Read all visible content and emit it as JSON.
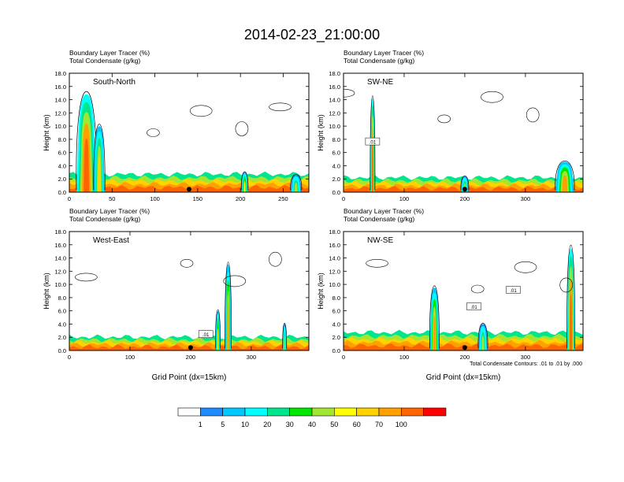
{
  "figure": {
    "title": "2014-02-23_21:00:00",
    "footer_note": "Total Condensate Contours: .01 to .01 by .000"
  },
  "colorbar": {
    "tick_labels": [
      "1",
      "5",
      "10",
      "20",
      "30",
      "40",
      "50",
      "60",
      "70",
      "100"
    ],
    "colors": [
      "#ffffff",
      "#1e8cff",
      "#00c8ff",
      "#00ffff",
      "#00e68c",
      "#00e600",
      "#a0e632",
      "#ffff00",
      "#ffd200",
      "#ffa000",
      "#ff6400",
      "#ff0000"
    ]
  },
  "chart_data": [
    {
      "type": "contour",
      "panel_label": "South-North",
      "subtitle_1": "Boundary Layer Tracer   (%)",
      "subtitle_2": "Total Condensate   (g/kg)",
      "ylabel": "Height (km)",
      "xlabel": "",
      "xlim": [
        0,
        280
      ],
      "x_ticks": [
        0,
        50,
        100,
        150,
        200,
        250
      ],
      "ylim": [
        0,
        18
      ],
      "y_ticks": [
        "0.0",
        "2.0",
        "4.0",
        "6.0",
        "8.0",
        "10.0",
        "12.0",
        "14.0",
        "16.0",
        "18.0"
      ],
      "contour_labels": [],
      "marker_x": 140,
      "plumes": [
        {
          "x": 20,
          "top": 14.8,
          "width": 18,
          "peak": 100
        },
        {
          "x": 35,
          "top": 10.0,
          "width": 10,
          "peak": 60
        },
        {
          "x": 205,
          "top": 3.0,
          "width": 6,
          "peak": 50
        },
        {
          "x": 265,
          "top": 2.6,
          "width": 10,
          "peak": 40
        }
      ],
      "bl_top_km": 1.6
    },
    {
      "type": "contour",
      "panel_label": "SW-NE",
      "subtitle_1": "Boundary Layer Tracer   (%)",
      "subtitle_2": "Total Condensate   (g/kg)",
      "ylabel": "Height (km)",
      "xlabel": "",
      "xlim": [
        0,
        395
      ],
      "x_ticks": [
        0,
        100,
        200,
        300
      ],
      "ylim": [
        0,
        18
      ],
      "y_ticks": [
        "0.0",
        "2.0",
        "4.0",
        "6.0",
        "8.0",
        "10.0",
        "12.0",
        "14.0",
        "16.0",
        "18.0"
      ],
      "contour_labels": [
        ".01"
      ],
      "marker_x": 200,
      "plumes": [
        {
          "x": 48,
          "top": 14.2,
          "width": 6,
          "peak": 100
        },
        {
          "x": 200,
          "top": 2.4,
          "width": 10,
          "peak": 40
        },
        {
          "x": 365,
          "top": 4.6,
          "width": 24,
          "peak": 70
        }
      ],
      "bl_top_km": 1.3
    },
    {
      "type": "contour",
      "panel_label": "West-East",
      "subtitle_1": "Boundary Layer Tracer   (%)",
      "subtitle_2": "Total Condensate   (g/kg)",
      "ylabel": "Height (km)",
      "xlabel": "Grid Point (dx=15km)",
      "xlim": [
        0,
        395
      ],
      "x_ticks": [
        0,
        100,
        200,
        300
      ],
      "ylim": [
        0,
        18
      ],
      "y_ticks": [
        "0.0",
        "2.0",
        "4.0",
        "6.0",
        "8.0",
        "10.0",
        "12.0",
        "14.0",
        "16.0",
        "18.0"
      ],
      "contour_labels": [
        ".01"
      ],
      "marker_x": 200,
      "plumes": [
        {
          "x": 262,
          "top": 13.0,
          "width": 8,
          "peak": 70
        },
        {
          "x": 245,
          "top": 6.0,
          "width": 6,
          "peak": 50
        },
        {
          "x": 355,
          "top": 4.0,
          "width": 5,
          "peak": 40
        }
      ],
      "bl_top_km": 1.2
    },
    {
      "type": "contour",
      "panel_label": "NW-SE",
      "subtitle_1": "Boundary Layer Tracer   (%)",
      "subtitle_2": "Total Condensate   (g/kg)",
      "ylabel": "Height (km)",
      "xlabel": "Grid Point (dx=15km)",
      "xlim": [
        0,
        395
      ],
      "x_ticks": [
        0,
        100,
        200,
        300
      ],
      "ylim": [
        0,
        18
      ],
      "y_ticks": [
        "0.0",
        "2.0",
        "4.0",
        "6.0",
        "8.0",
        "10.0",
        "12.0",
        "14.0",
        "16.0",
        "18.0"
      ],
      "contour_labels": [
        ".01",
        ".01"
      ],
      "marker_x": 200,
      "plumes": [
        {
          "x": 150,
          "top": 9.5,
          "width": 12,
          "peak": 70
        },
        {
          "x": 230,
          "top": 4.0,
          "width": 12,
          "peak": 40
        },
        {
          "x": 375,
          "top": 15.5,
          "width": 10,
          "peak": 100
        }
      ],
      "bl_top_km": 1.6
    }
  ]
}
